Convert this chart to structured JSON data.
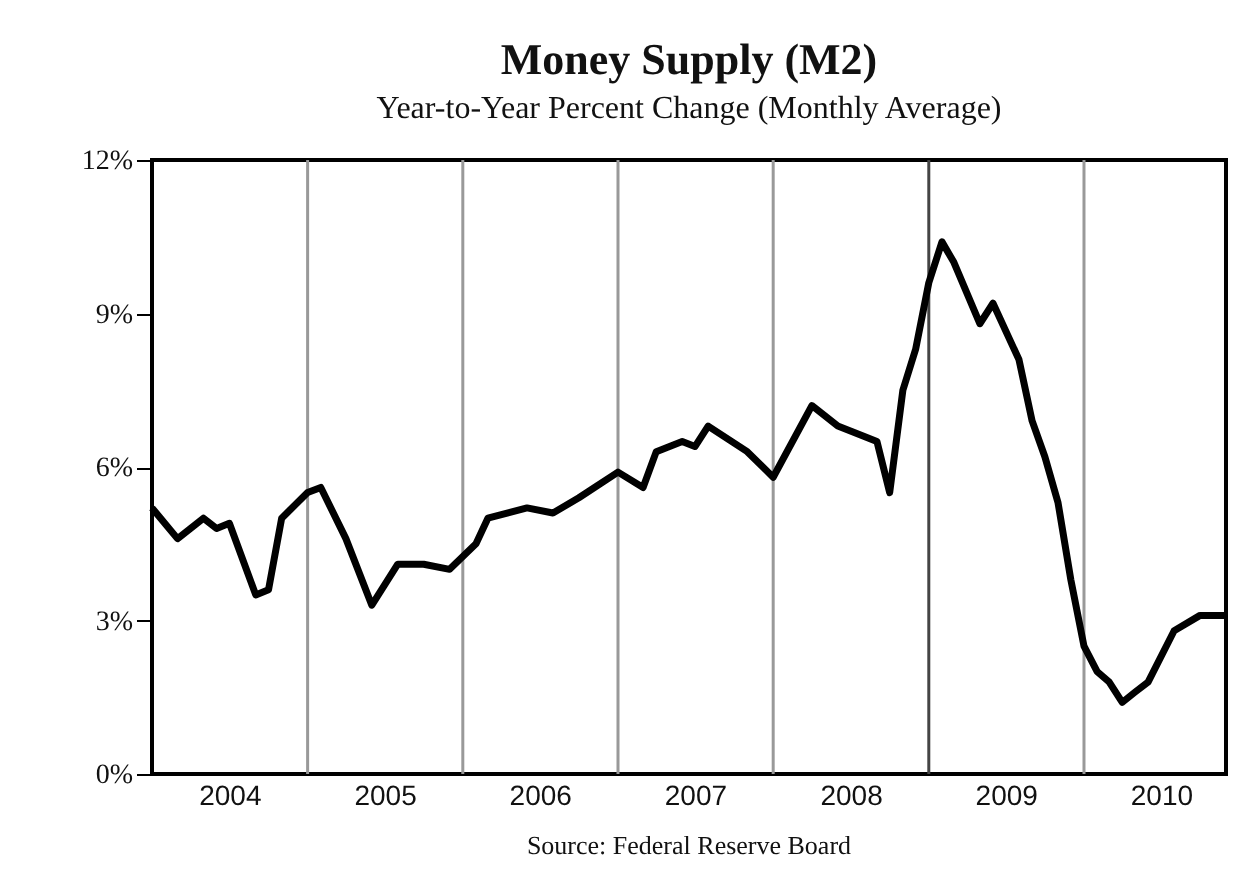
{
  "chart_data": {
    "type": "line",
    "title": "Money Supply (M2)",
    "subtitle": "Year-to-Year Percent Change (Monthly Average)",
    "annotations": [
      "Source: Federal Reserve Board"
    ],
    "xlim": [
      "2004-01",
      "2010-12"
    ],
    "xticks": [
      {
        "value": "2004-07",
        "label": "2004"
      },
      {
        "value": "2005-07",
        "label": "2005"
      },
      {
        "value": "2006-07",
        "label": "2006"
      },
      {
        "value": "2007-07",
        "label": "2007"
      },
      {
        "value": "2008-07",
        "label": "2008"
      },
      {
        "value": "2009-07",
        "label": "2009"
      },
      {
        "value": "2010-07",
        "label": "2010"
      }
    ],
    "ylim": [
      0,
      12
    ],
    "yticks": [
      {
        "value": 0,
        "label": "0%"
      },
      {
        "value": 3,
        "label": "3%"
      },
      {
        "value": 6,
        "label": "6%"
      },
      {
        "value": 9,
        "label": "9%"
      },
      {
        "value": 12,
        "label": "12%"
      }
    ],
    "ref_lines": [
      {
        "axis": "x",
        "value": "2005-01",
        "color": "#999999"
      },
      {
        "axis": "x",
        "value": "2006-01",
        "color": "#999999"
      },
      {
        "axis": "x",
        "value": "2007-01",
        "color": "#999999"
      },
      {
        "axis": "x",
        "value": "2008-01",
        "color": "#999999"
      },
      {
        "axis": "x",
        "value": "2009-01",
        "color": "#444444"
      },
      {
        "axis": "x",
        "value": "2010-01",
        "color": "#999999"
      }
    ],
    "series": [
      {
        "color": "#000000",
        "x": [
          "2004-01",
          "2004-03",
          "2004-05",
          "2004-06",
          "2004-07",
          "2004-09",
          "2004-10",
          "2004-11",
          "2005-01",
          "2005-02",
          "2005-04",
          "2005-06",
          "2005-08",
          "2005-10",
          "2005-12",
          "2006-02",
          "2006-03",
          "2006-06",
          "2006-08",
          "2006-10",
          "2007-01",
          "2007-03",
          "2007-04",
          "2007-06",
          "2007-07",
          "2007-08",
          "2007-11",
          "2008-01",
          "2008-04",
          "2008-06",
          "2008-08",
          "2008-09",
          "2008-10",
          "2008-11",
          "2008-12",
          "2009-01",
          "2009-02",
          "2009-03",
          "2009-05",
          "2009-06",
          "2009-08",
          "2009-09",
          "2009-10",
          "2009-11",
          "2009-12",
          "2010-01",
          "2010-02",
          "2010-03",
          "2010-04",
          "2010-05",
          "2010-06",
          "2010-08",
          "2010-10",
          "2010-12"
        ],
        "values": [
          5.2,
          4.6,
          5.0,
          4.8,
          4.9,
          3.5,
          3.6,
          5.0,
          5.5,
          5.6,
          4.6,
          3.3,
          4.1,
          4.1,
          4.0,
          4.5,
          5.0,
          5.2,
          5.1,
          5.4,
          5.9,
          5.6,
          6.3,
          6.5,
          6.4,
          6.8,
          6.3,
          5.8,
          7.2,
          6.8,
          6.6,
          6.5,
          5.5,
          7.5,
          8.3,
          9.6,
          10.4,
          10.0,
          8.8,
          9.2,
          8.1,
          6.9,
          6.2,
          5.3,
          3.8,
          2.5,
          2.0,
          1.8,
          1.4,
          1.6,
          1.8,
          2.8,
          3.1,
          3.1
        ]
      }
    ]
  }
}
